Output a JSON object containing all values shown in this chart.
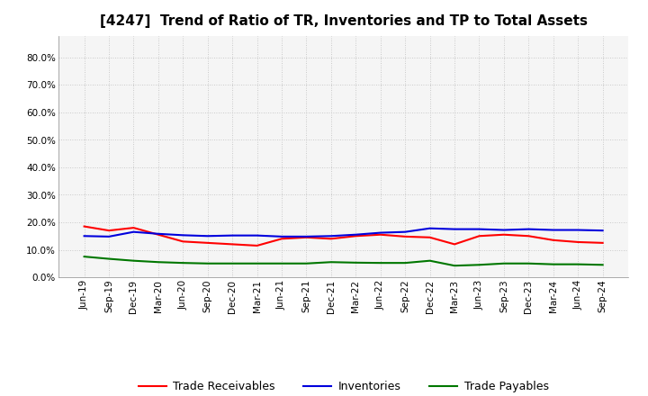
{
  "title": "[4247]  Trend of Ratio of TR, Inventories and TP to Total Assets",
  "title_fontsize": 11,
  "background_color": "#ffffff",
  "plot_background": "#f5f5f5",
  "grid_color": "#bbbbbb",
  "ylim": [
    0.0,
    0.88
  ],
  "yticks": [
    0.0,
    0.1,
    0.2,
    0.3,
    0.4,
    0.5,
    0.6,
    0.7,
    0.8
  ],
  "labels": [
    "Jun-19",
    "Sep-19",
    "Dec-19",
    "Mar-20",
    "Jun-20",
    "Sep-20",
    "Dec-20",
    "Mar-21",
    "Jun-21",
    "Sep-21",
    "Dec-21",
    "Mar-22",
    "Jun-22",
    "Sep-22",
    "Dec-22",
    "Mar-23",
    "Jun-23",
    "Sep-23",
    "Dec-23",
    "Mar-24",
    "Jun-24",
    "Sep-24"
  ],
  "trade_receivables": [
    0.185,
    0.17,
    0.18,
    0.155,
    0.13,
    0.125,
    0.12,
    0.115,
    0.14,
    0.145,
    0.14,
    0.15,
    0.155,
    0.148,
    0.145,
    0.12,
    0.15,
    0.155,
    0.15,
    0.135,
    0.128,
    0.125
  ],
  "inventories": [
    0.15,
    0.148,
    0.165,
    0.158,
    0.153,
    0.15,
    0.152,
    0.152,
    0.148,
    0.148,
    0.15,
    0.155,
    0.162,
    0.165,
    0.178,
    0.175,
    0.175,
    0.172,
    0.175,
    0.172,
    0.172,
    0.17
  ],
  "trade_payables": [
    0.075,
    0.067,
    0.06,
    0.055,
    0.052,
    0.05,
    0.05,
    0.05,
    0.05,
    0.05,
    0.055,
    0.053,
    0.052,
    0.052,
    0.06,
    0.042,
    0.045,
    0.05,
    0.05,
    0.047,
    0.047,
    0.045
  ],
  "tr_color": "#ff0000",
  "inv_color": "#0000dd",
  "tp_color": "#007700",
  "line_width": 1.5,
  "legend_labels": [
    "Trade Receivables",
    "Inventories",
    "Trade Payables"
  ],
  "legend_fontsize": 9,
  "tick_fontsize": 7.5
}
